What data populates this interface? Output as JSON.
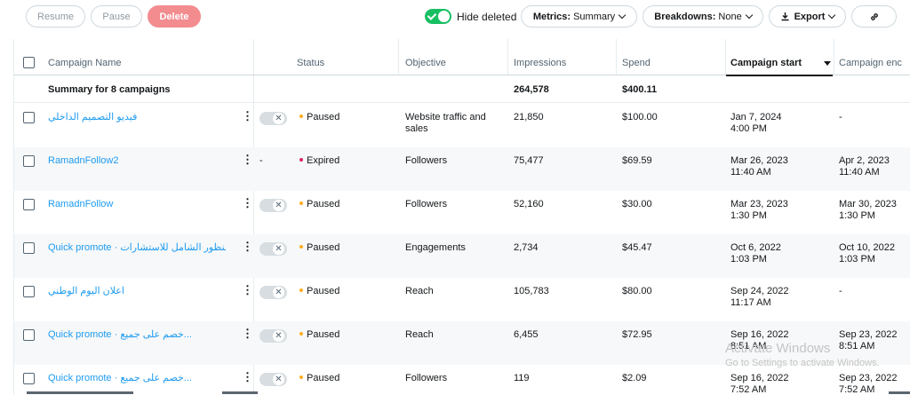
{
  "toolbar": {
    "resume": "Resume",
    "pause": "Pause",
    "delete": "Delete",
    "hide_deleted": "Hide deleted",
    "metrics_label": "Metrics:",
    "metrics_value": "Summary",
    "breakdowns_label": "Breakdowns:",
    "breakdowns_value": "None",
    "export": "Export",
    "hide_deleted_on": true
  },
  "columns": {
    "name": "Campaign Name",
    "status": "Status",
    "objective": "Objective",
    "impressions": "Impressions",
    "spend": "Spend",
    "start": "Campaign start",
    "end": "Campaign enc"
  },
  "summary": {
    "label": "Summary for 8 campaigns",
    "impressions": "264,578",
    "spend": "$400.11"
  },
  "rows": [
    {
      "name": "فيديو التصميم الداخلي",
      "status": "Paused",
      "status_color": "#ffad1f",
      "objective": "Website traffic and",
      "objective2": "sales",
      "impressions": "21,850",
      "spend": "$100.00",
      "start": "Jan 7, 2024",
      "start_time": "4:00 PM",
      "end": "-",
      "end_time": "",
      "has_toggle": true,
      "dash": ""
    },
    {
      "name": "RamadnFollow2",
      "status": "Expired",
      "status_color": "#e0245e",
      "objective": "Followers",
      "objective2": "",
      "impressions": "75,477",
      "spend": "$69.59",
      "start": "Mar 26, 2023",
      "start_time": "11:40 AM",
      "end": "Apr 2, 2023",
      "end_time": "11:40 AM",
      "has_toggle": false,
      "dash": "-"
    },
    {
      "name": "RamadnFollow",
      "status": "Paused",
      "status_color": "#ffad1f",
      "objective": "Followers",
      "objective2": "",
      "impressions": "52,160",
      "spend": "$30.00",
      "start": "Mar 23, 2023",
      "start_time": "1:30 PM",
      "end": "Mar 30, 2023",
      "end_time": "1:30 PM",
      "has_toggle": true,
      "dash": ""
    },
    {
      "name": "Quick promote · المنظور الشامل للاستشارات...",
      "status": "Paused",
      "status_color": "#ffad1f",
      "objective": "Engagements",
      "objective2": "",
      "impressions": "2,734",
      "spend": "$45.47",
      "start": "Oct 6, 2022",
      "start_time": "1:03 PM",
      "end": "Oct 10, 2022",
      "end_time": "1:03 PM",
      "has_toggle": true,
      "dash": ""
    },
    {
      "name": "اعلان اليوم الوطني",
      "status": "Paused",
      "status_color": "#ffad1f",
      "objective": "Reach",
      "objective2": "",
      "impressions": "105,783",
      "spend": "$80.00",
      "start": "Sep 24, 2022",
      "start_time": "11:17 AM",
      "end": "-",
      "end_time": "",
      "has_toggle": true,
      "dash": ""
    },
    {
      "name": "Quick promote · خصم على جميع...",
      "status": "Paused",
      "status_color": "#ffad1f",
      "objective": "Reach",
      "objective2": "",
      "impressions": "6,455",
      "spend": "$72.95",
      "start": "Sep 16, 2022",
      "start_time": "8:51 AM",
      "end": "Sep 23, 2022",
      "end_time": "8:51 AM",
      "has_toggle": true,
      "dash": ""
    },
    {
      "name": "Quick promote · خصم على جميع...",
      "status": "Paused",
      "status_color": "#ffad1f",
      "objective": "Followers",
      "objective2": "",
      "impressions": "119",
      "spend": "$2.09",
      "start": "Sep 16, 2022",
      "start_time": "7:52 AM",
      "end": "Sep 23, 2022",
      "end_time": "7:52 AM",
      "has_toggle": true,
      "dash": ""
    }
  ],
  "watermark": {
    "title": "Activate Windows",
    "subtitle": "Go to Settings to activate Windows."
  }
}
